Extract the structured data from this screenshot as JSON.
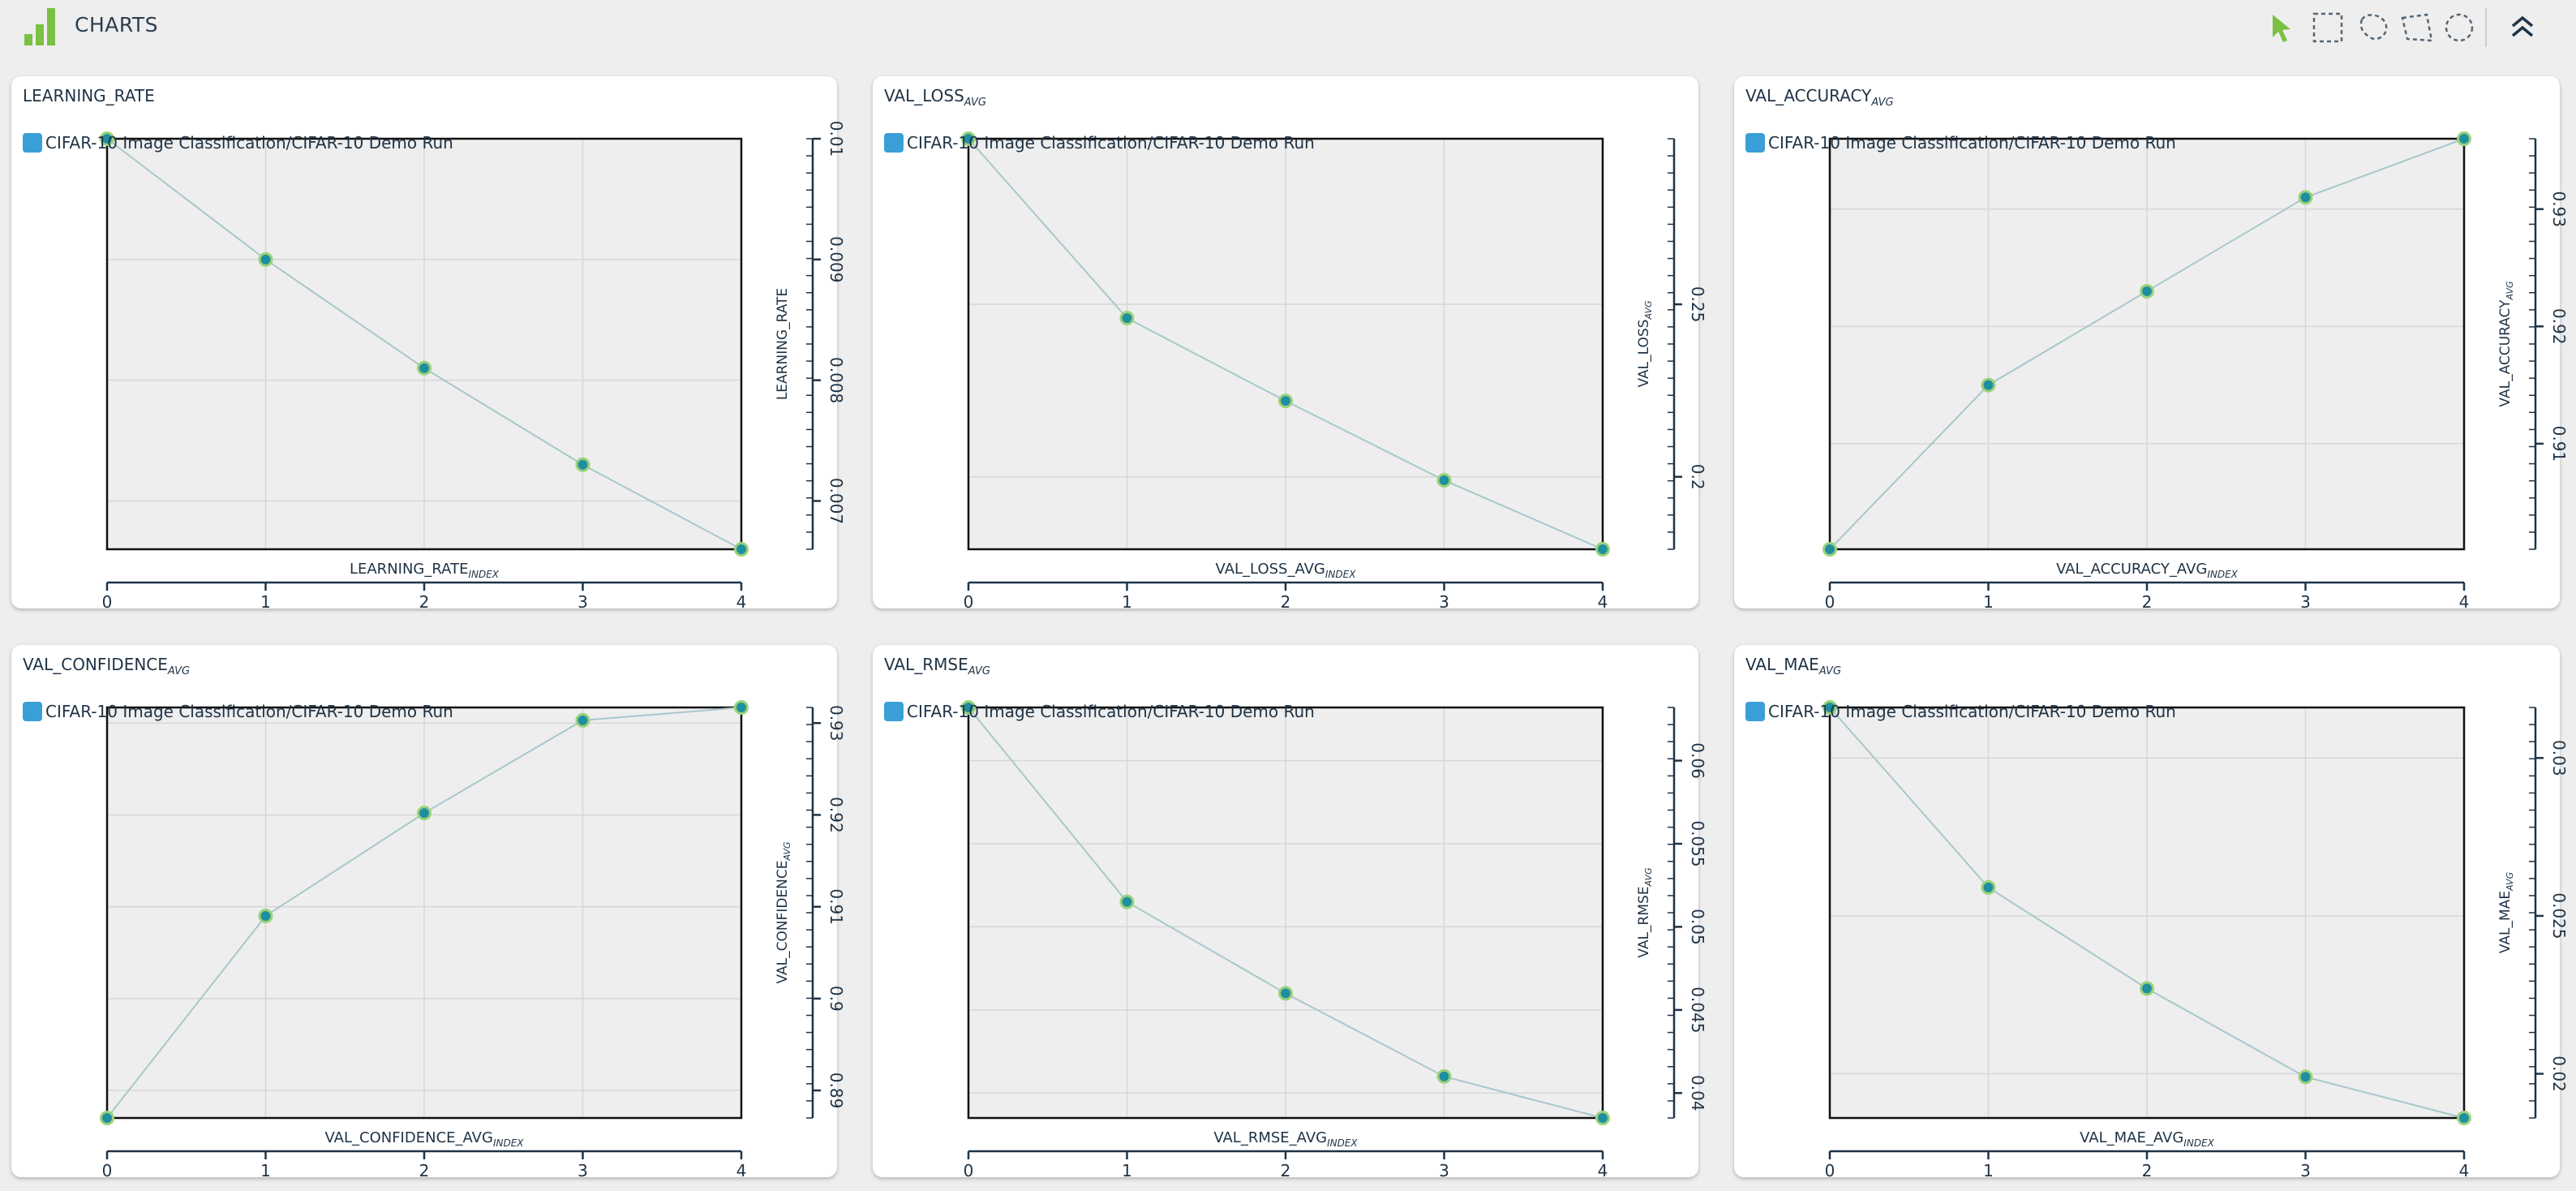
{
  "header": {
    "title": "CHARTS"
  },
  "toolbar": {
    "tools": [
      "pointer-tool",
      "box-select-tool",
      "lasso-tool",
      "polygon-select-tool",
      "ellipse-select-tool",
      "collapse-button"
    ]
  },
  "colors": {
    "line": "#a8c7cc",
    "point_fill": "#1f8fa0",
    "point_ring": "#9ad27a",
    "legend": "#3a9fd6",
    "plot_bg": "#eeeeee",
    "logo": "#7ac143"
  },
  "chart_data": [
    {
      "type": "line",
      "title": "LEARNING_RATE",
      "title_sub": "",
      "legend": "CIFAR-10 Image Classification/CIFAR-10 Demo Run",
      "xlabel": "LEARNING_RATE",
      "xlabel_sub": "INDEX",
      "ylabel": "LEARNING_RATE",
      "ylabel_sub": "",
      "x": [
        0,
        1,
        2,
        3,
        4
      ],
      "values": [
        0.01,
        0.009,
        0.0081,
        0.0073,
        0.0066
      ],
      "xlim": [
        0,
        4
      ],
      "ylim": [
        0.0066,
        0.01
      ],
      "yticks": [
        0.007,
        0.008,
        0.009,
        0.01
      ],
      "ytick_labels": [
        "0.007",
        "0.008",
        "0.009",
        "0.01"
      ],
      "xticks": [
        0,
        1,
        2,
        3,
        4
      ]
    },
    {
      "type": "line",
      "title": "VAL_LOSS",
      "title_sub": "AVG",
      "legend": "CIFAR-10 Image Classification/CIFAR-10 Demo Run",
      "xlabel": "VAL_LOSS_AVG",
      "xlabel_sub": "INDEX",
      "ylabel": "VAL_LOSS",
      "ylabel_sub": "AVG",
      "x": [
        0,
        1,
        2,
        3,
        4
      ],
      "values": [
        0.298,
        0.246,
        0.222,
        0.199,
        0.179
      ],
      "xlim": [
        0,
        4
      ],
      "ylim": [
        0.179,
        0.298
      ],
      "yticks": [
        0.2,
        0.25
      ],
      "ytick_labels": [
        "0.2",
        "0.25"
      ],
      "xticks": [
        0,
        1,
        2,
        3,
        4
      ]
    },
    {
      "type": "line",
      "title": "VAL_ACCURACY",
      "title_sub": "AVG",
      "legend": "CIFAR-10 Image Classification/CIFAR-10 Demo Run",
      "xlabel": "VAL_ACCURACY_AVG",
      "xlabel_sub": "INDEX",
      "ylabel": "VAL_ACCURACY",
      "ylabel_sub": "AVG",
      "x": [
        0,
        1,
        2,
        3,
        4
      ],
      "values": [
        0.901,
        0.915,
        0.923,
        0.931,
        0.936
      ],
      "xlim": [
        0,
        4
      ],
      "ylim": [
        0.901,
        0.936
      ],
      "yticks": [
        0.91,
        0.92,
        0.93
      ],
      "ytick_labels": [
        "0.91",
        "0.92",
        "0.93"
      ],
      "xticks": [
        0,
        1,
        2,
        3,
        4
      ]
    },
    {
      "type": "line",
      "title": "VAL_CONFIDENCE",
      "title_sub": "AVG",
      "legend": "CIFAR-10 Image Classification/CIFAR-10 Demo Run",
      "xlabel": "VAL_CONFIDENCE_AVG",
      "xlabel_sub": "INDEX",
      "ylabel": "VAL_CONFIDENCE",
      "ylabel_sub": "AVG",
      "x": [
        0,
        1,
        2,
        3,
        4
      ],
      "values": [
        0.887,
        0.909,
        0.9202,
        0.9303,
        0.9317
      ],
      "xlim": [
        0,
        4
      ],
      "ylim": [
        0.887,
        0.9317
      ],
      "yticks": [
        0.89,
        0.9,
        0.91,
        0.92,
        0.93
      ],
      "ytick_labels": [
        "0.89",
        "0.9",
        "0.91",
        "0.92",
        "0.93"
      ],
      "xticks": [
        0,
        1,
        2,
        3,
        4
      ]
    },
    {
      "type": "line",
      "title": "VAL_RMSE",
      "title_sub": "AVG",
      "legend": "CIFAR-10 Image Classification/CIFAR-10 Demo Run",
      "xlabel": "VAL_RMSE_AVG",
      "xlabel_sub": "INDEX",
      "ylabel": "VAL_RMSE",
      "ylabel_sub": "AVG",
      "x": [
        0,
        1,
        2,
        3,
        4
      ],
      "values": [
        0.0632,
        0.0515,
        0.046,
        0.041,
        0.0385
      ],
      "xlim": [
        0,
        4
      ],
      "ylim": [
        0.0385,
        0.0632
      ],
      "yticks": [
        0.04,
        0.045,
        0.05,
        0.055,
        0.06
      ],
      "ytick_labels": [
        "0.04",
        "0.045",
        "0.05",
        "0.055",
        "0.06"
      ],
      "xticks": [
        0,
        1,
        2,
        3,
        4
      ]
    },
    {
      "type": "line",
      "title": "VAL_MAE",
      "title_sub": "AVG",
      "legend": "CIFAR-10 Image Classification/CIFAR-10 Demo Run",
      "xlabel": "VAL_MAE_AVG",
      "xlabel_sub": "INDEX",
      "ylabel": "VAL_MAE",
      "ylabel_sub": "AVG",
      "x": [
        0,
        1,
        2,
        3,
        4
      ],
      "values": [
        0.0316,
        0.0259,
        0.0227,
        0.0199,
        0.0186
      ],
      "xlim": [
        0,
        4
      ],
      "ylim": [
        0.0186,
        0.0316
      ],
      "yticks": [
        0.02,
        0.025,
        0.03
      ],
      "ytick_labels": [
        "0.02",
        "0.025",
        "0.03"
      ],
      "xticks": [
        0,
        1,
        2,
        3,
        4
      ]
    }
  ]
}
